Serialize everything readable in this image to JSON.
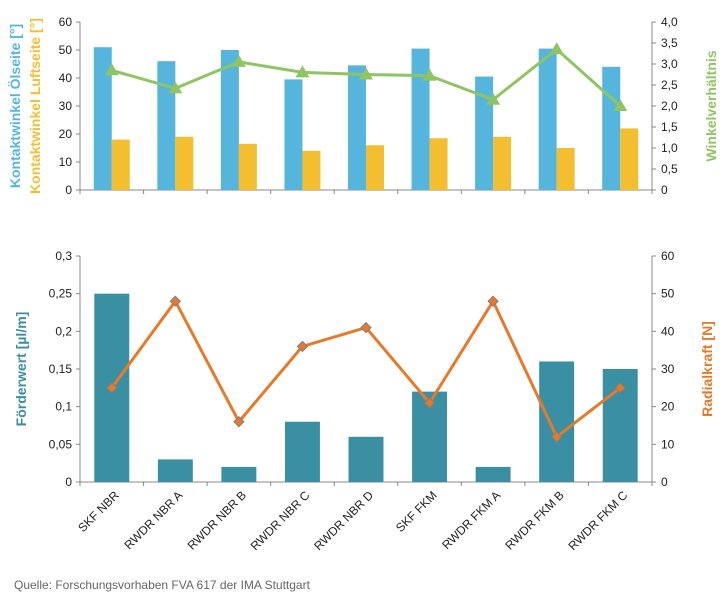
{
  "categories": [
    "SKF NBR",
    "RWDR NBR A",
    "RWDR NBR B",
    "RWDR NBR C",
    "RWDR NBR D",
    "SKF FKM",
    "RWDR FKM A",
    "RWDR FKM B",
    "RWDR FKM C"
  ],
  "source": "Quelle: Forschungsvorhaben FVA 617 der IMA Stuttgart",
  "colors": {
    "blue": "#56b5dd",
    "yellow": "#f3bf31",
    "green": "#8fc463",
    "teal": "#3a8fa3",
    "orange": "#e7792b",
    "axis": "#888888",
    "text": "#222222"
  },
  "chart_data": [
    {
      "type": "bar",
      "categories": [
        "SKF NBR",
        "RWDR NBR A",
        "RWDR NBR B",
        "RWDR NBR C",
        "RWDR NBR D",
        "SKF FKM",
        "RWDR FKM A",
        "RWDR FKM B",
        "RWDR FKM C"
      ],
      "series": [
        {
          "name": "Kontaktwinkel Ölseite [°]",
          "kind": "bar",
          "axis": "left",
          "color": "#56b5dd",
          "values": [
            51,
            46,
            50,
            39.5,
            44.5,
            50.5,
            40.5,
            50.5,
            44
          ]
        },
        {
          "name": "Kontaktwinkel Luftseite [°]",
          "kind": "bar",
          "axis": "left",
          "color": "#f3bf31",
          "values": [
            18,
            19,
            16.5,
            14,
            16,
            18.5,
            19,
            15,
            22
          ]
        },
        {
          "name": "Winkelverhältnis",
          "kind": "line",
          "axis": "right",
          "color": "#8fc463",
          "marker": "triangle",
          "values": [
            2.85,
            2.42,
            3.05,
            2.8,
            2.75,
            2.72,
            2.15,
            3.35,
            2.0
          ]
        }
      ],
      "y_left": {
        "label_parts": [
          {
            "text": "Kontaktwinkel Ölseite [°]",
            "color": "#56b5dd"
          },
          {
            "text": "Kontaktwinkel Luftseite [°]",
            "color": "#f3bf31"
          }
        ],
        "ylim": [
          0,
          60
        ],
        "ticks": [
          "0",
          "10",
          "20",
          "30",
          "40",
          "50",
          "60"
        ]
      },
      "y_right": {
        "label": "Winkelverhältnis",
        "ylim": [
          0,
          4
        ],
        "ticks": [
          "0",
          "0,5",
          "1,0",
          "1,5",
          "2,0",
          "2,5",
          "3,0",
          "3,5",
          "4,0"
        ]
      },
      "grid": false
    },
    {
      "type": "bar",
      "categories": [
        "SKF NBR",
        "RWDR NBR A",
        "RWDR NBR B",
        "RWDR NBR C",
        "RWDR NBR D",
        "SKF FKM",
        "RWDR FKM A",
        "RWDR FKM B",
        "RWDR FKM C"
      ],
      "series": [
        {
          "name": "Förderwert [µl/m]",
          "kind": "bar",
          "axis": "left",
          "color": "#3a8fa3",
          "values": [
            0.25,
            0.03,
            0.02,
            0.08,
            0.06,
            0.12,
            0.02,
            0.16,
            0.15
          ]
        },
        {
          "name": "Radialkraft [N]",
          "kind": "line",
          "axis": "right",
          "color": "#e7792b",
          "marker": "diamond",
          "values": [
            25,
            48,
            16,
            36,
            41,
            21,
            48,
            12,
            25
          ]
        }
      ],
      "y_left": {
        "label": "Förderwert [µl/m]",
        "ylim": [
          0,
          0.3
        ],
        "ticks": [
          "0",
          "0,05",
          "0,1",
          "0,15",
          "0,2",
          "0,25",
          "0,3"
        ]
      },
      "y_right": {
        "label": "Radialkraft [N]",
        "ylim": [
          0,
          60
        ],
        "ticks": [
          "0",
          "10",
          "20",
          "30",
          "40",
          "50",
          "60"
        ]
      },
      "grid": false
    }
  ]
}
